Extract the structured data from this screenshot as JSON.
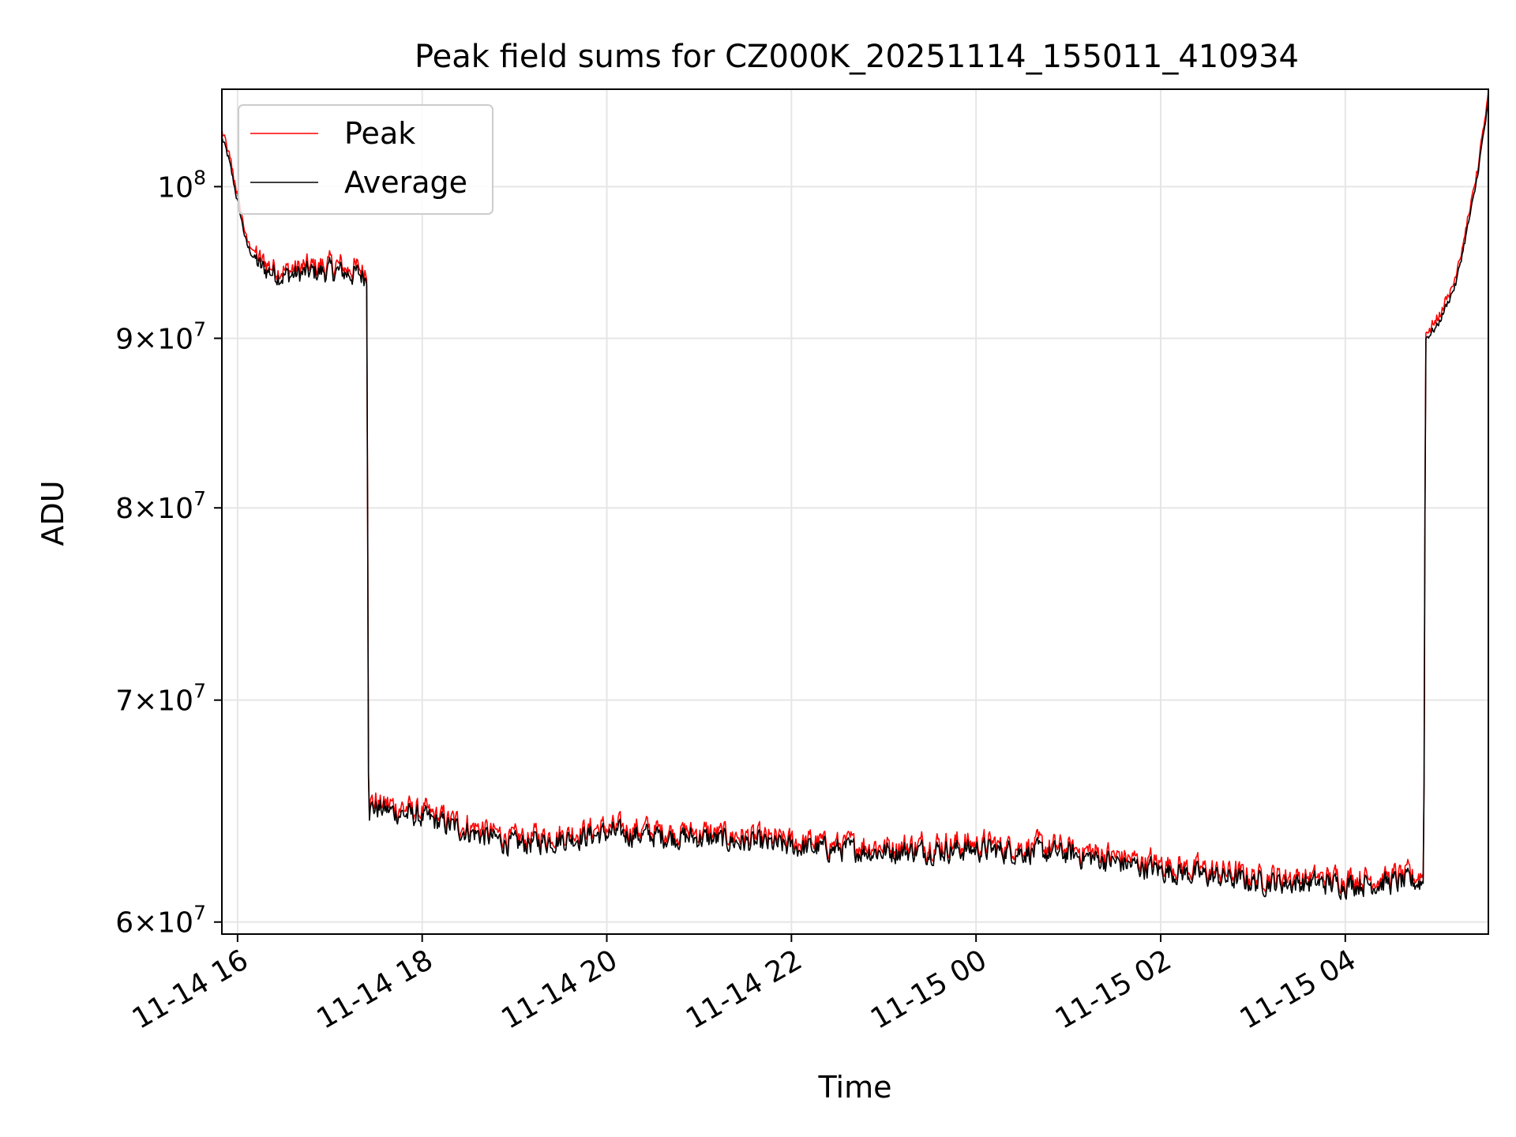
{
  "chart_data": {
    "type": "line",
    "title": "Peak field sums for CZ000K_20251114_155011_410934",
    "xlabel": "Time",
    "ylabel": "ADU",
    "yscale": "log",
    "grid": true,
    "legend_position": "top-left",
    "x_unit": "hours since 2025-11-14 00:00",
    "xlim": [
      15.83,
      29.55
    ],
    "ylim": [
      59500000,
      107000000
    ],
    "x_ticks": [
      {
        "value": 16,
        "label": "11-14 16"
      },
      {
        "value": 18,
        "label": "11-14 18"
      },
      {
        "value": 20,
        "label": "11-14 20"
      },
      {
        "value": 22,
        "label": "11-14 22"
      },
      {
        "value": 24,
        "label": "11-15 00"
      },
      {
        "value": 26,
        "label": "11-15 02"
      },
      {
        "value": 28,
        "label": "11-15 04"
      }
    ],
    "y_ticks": [
      {
        "value": 60000000,
        "base": "6",
        "exp": "7",
        "label": "6×10^7"
      },
      {
        "value": 70000000,
        "base": "7",
        "exp": "7",
        "label": "7×10^7"
      },
      {
        "value": 80000000,
        "base": "8",
        "exp": "7",
        "label": "8×10^7"
      },
      {
        "value": 90000000,
        "base": "9",
        "exp": "7",
        "label": "9×10^7"
      },
      {
        "value": 100000000,
        "base": "",
        "exp": "8",
        "label": "10^8"
      }
    ],
    "series": [
      {
        "name": "Peak",
        "color": "#ff0000",
        "noise": 0.0135,
        "offset": 0.0035
      },
      {
        "name": "Average",
        "color": "#000000",
        "noise": 0.0125,
        "offset": 0.0
      }
    ],
    "trend": [
      {
        "x": 15.83,
        "y": 103500000
      },
      {
        "x": 15.9,
        "y": 102000000
      },
      {
        "x": 16.0,
        "y": 99000000
      },
      {
        "x": 16.1,
        "y": 96000000
      },
      {
        "x": 16.25,
        "y": 94500000
      },
      {
        "x": 16.5,
        "y": 94000000
      },
      {
        "x": 17.0,
        "y": 94300000
      },
      {
        "x": 17.4,
        "y": 94000000
      },
      {
        "x": 17.42,
        "y": 65000000
      },
      {
        "x": 18.0,
        "y": 64500000
      },
      {
        "x": 19.0,
        "y": 63300000
      },
      {
        "x": 20.0,
        "y": 63800000
      },
      {
        "x": 21.0,
        "y": 63600000
      },
      {
        "x": 22.0,
        "y": 63200000
      },
      {
        "x": 23.0,
        "y": 63000000
      },
      {
        "x": 24.0,
        "y": 63100000
      },
      {
        "x": 25.0,
        "y": 62900000
      },
      {
        "x": 26.0,
        "y": 62200000
      },
      {
        "x": 27.0,
        "y": 61700000
      },
      {
        "x": 28.0,
        "y": 61600000
      },
      {
        "x": 28.85,
        "y": 61700000
      },
      {
        "x": 28.87,
        "y": 90000000
      },
      {
        "x": 29.0,
        "y": 90800000
      },
      {
        "x": 29.2,
        "y": 93500000
      },
      {
        "x": 29.4,
        "y": 99500000
      },
      {
        "x": 29.55,
        "y": 106000000
      }
    ]
  }
}
